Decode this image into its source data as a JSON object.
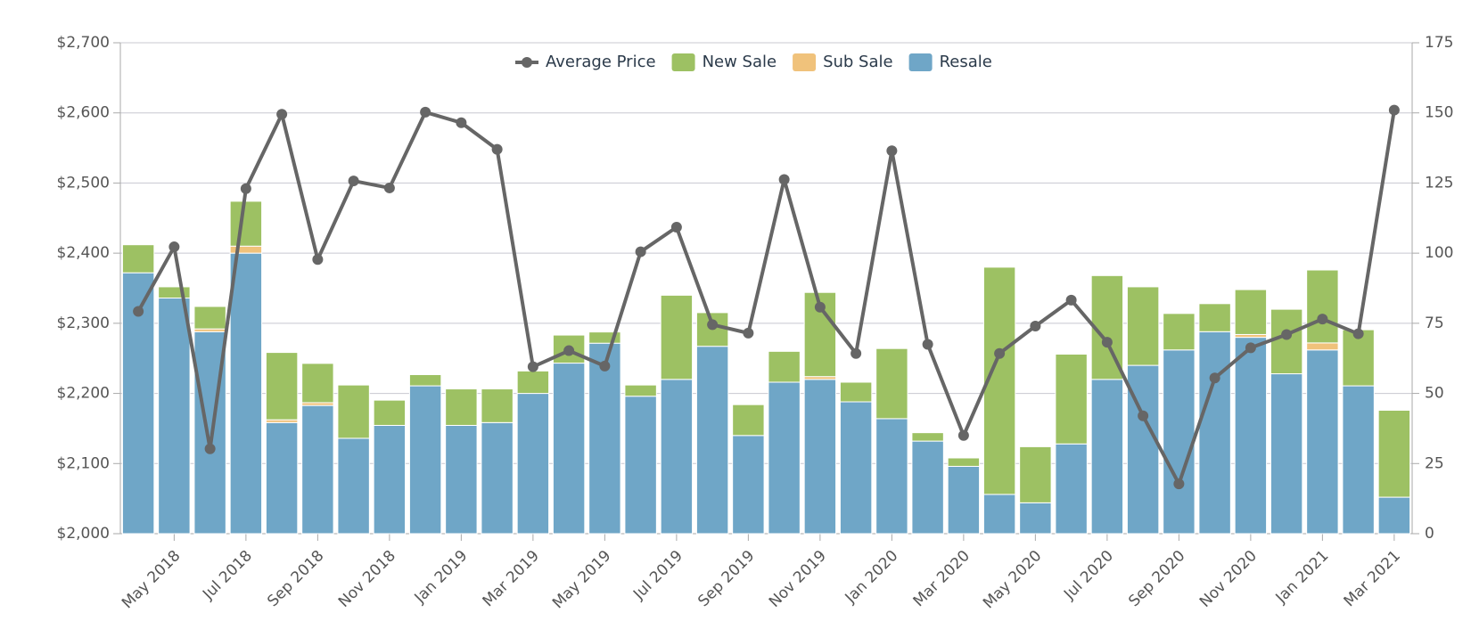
{
  "chart_data": {
    "type": "bar-line",
    "categories": [
      null,
      "May 2018",
      null,
      "Jul 2018",
      null,
      "Sep 2018",
      null,
      "Nov 2018",
      null,
      "Jan 2019",
      null,
      "Mar 2019",
      null,
      "May 2019",
      null,
      "Jul 2019",
      null,
      "Sep 2019",
      null,
      "Nov 2019",
      null,
      "Jan 2020",
      null,
      "Mar 2020",
      null,
      "May 2020",
      null,
      "Jul 2020",
      null,
      "Sep 2020",
      null,
      "Nov 2020",
      null,
      "Jan 2021",
      null,
      "Mar 2021"
    ],
    "series": [
      {
        "name": "Average Price",
        "type": "line",
        "color": "#666666",
        "axis": "y",
        "values": [
          2317,
          2409,
          2121,
          2492,
          2598,
          2391,
          2503,
          2493,
          2601,
          2586,
          2548,
          2238,
          2261,
          2239,
          2402,
          2437,
          2298,
          2286,
          2505,
          2323,
          2257,
          2546,
          2270,
          2140,
          2257,
          2296,
          2333,
          2273,
          2168,
          2071,
          2222,
          2265,
          2284,
          2306,
          2285,
          2604
        ]
      },
      {
        "name": "New Sale",
        "type": "bar",
        "color": "#9dc163",
        "axis": "y2",
        "values": [
          10,
          4,
          8,
          16,
          24,
          14,
          19,
          9,
          4,
          13,
          12,
          8,
          10,
          4,
          4,
          30,
          12,
          11,
          11,
          30,
          7,
          25,
          3,
          3,
          81,
          20,
          32,
          37,
          28,
          13,
          10,
          16,
          23,
          26,
          20,
          31
        ]
      },
      {
        "name": "Sub Sale",
        "type": "bar",
        "color": "#f0c27b",
        "axis": "y2",
        "values": [
          0,
          0,
          1,
          2.5,
          1,
          1,
          0,
          0,
          0,
          0,
          0,
          0,
          0,
          0,
          0,
          0,
          0,
          0,
          0,
          1,
          0,
          0,
          0,
          0,
          0,
          0,
          0,
          0,
          0,
          0,
          0,
          1,
          0,
          2.5,
          0,
          0
        ]
      },
      {
        "name": "Resale",
        "type": "bar",
        "color": "#6fa6c7",
        "axis": "y2",
        "values": [
          93,
          84,
          72,
          100,
          39.6,
          45.7,
          34,
          38.6,
          52.7,
          38.6,
          39.6,
          50,
          60.8,
          67.9,
          49,
          55,
          66.8,
          35,
          54,
          55,
          47,
          41,
          33,
          24,
          14,
          11,
          32,
          55,
          60,
          65.5,
          72,
          70,
          57,
          65.5,
          52.7,
          13
        ]
      }
    ],
    "ylim": [
      2000,
      2700
    ],
    "yticks": [
      {
        "value": 2000,
        "label": "$2,000"
      },
      {
        "value": 2100,
        "label": "$2,100"
      },
      {
        "value": 2200,
        "label": "$2,200"
      },
      {
        "value": 2300,
        "label": "$2,300"
      },
      {
        "value": 2400,
        "label": "$2,400"
      },
      {
        "value": 2500,
        "label": "$2,500"
      },
      {
        "value": 2600,
        "label": "$2,600"
      },
      {
        "value": 2700,
        "label": "$2,700"
      }
    ],
    "y2lim": [
      0,
      175
    ],
    "y2ticks": [
      0,
      25,
      50,
      75,
      100,
      125,
      150,
      175
    ],
    "grid": true,
    "legend": "top"
  }
}
